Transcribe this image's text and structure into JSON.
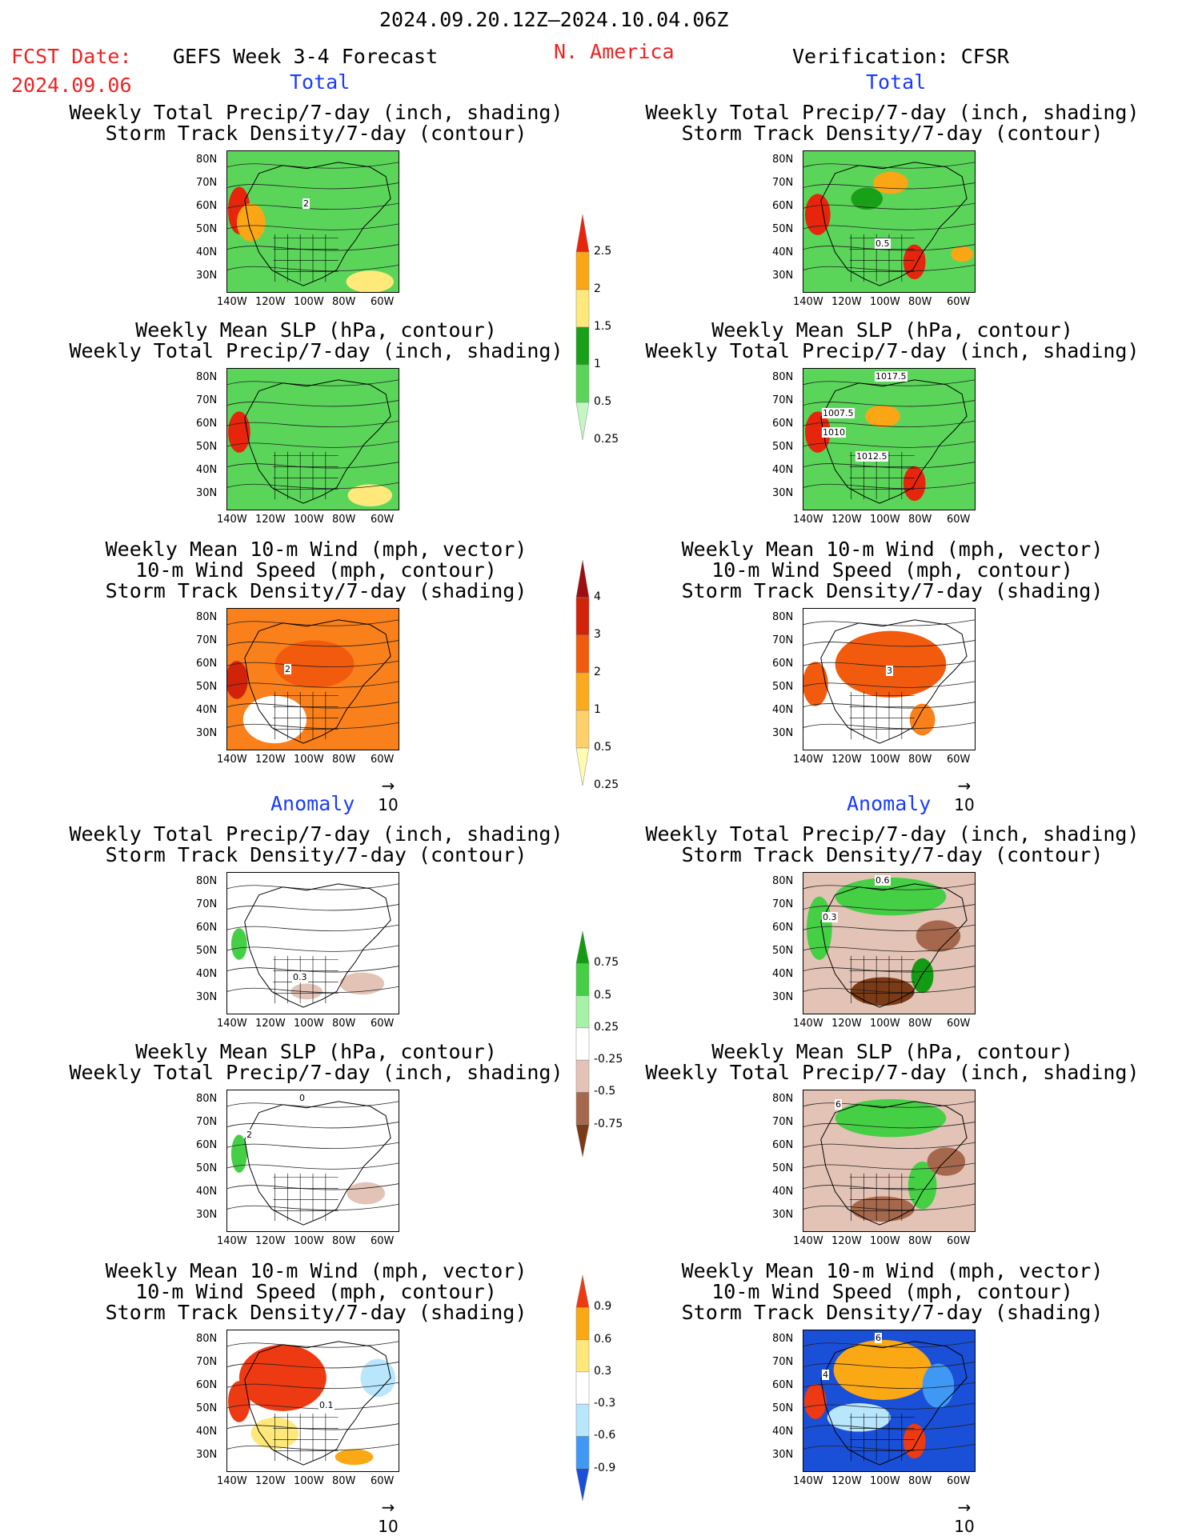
{
  "header": {
    "period": "2024.09.20.12Z–2024.10.04.06Z",
    "fcst_label": "FCST Date:",
    "fcst_date": "2024.09.06",
    "model": "GEFS Week 3-4 Forecast",
    "region": "N. America",
    "verification": "Verification: CFSR"
  },
  "sections": {
    "total": "Total",
    "anomaly": "Anomaly"
  },
  "titles": {
    "precip_storm": [
      "Weekly Total Precip/7-day (inch, shading)",
      "Storm Track Density/7-day (contour)"
    ],
    "slp_precip": [
      "Weekly Mean SLP (hPa, contour)",
      "Weekly Total Precip/7-day (inch, shading)"
    ],
    "wind_storm": [
      "Weekly Mean 10-m Wind (mph, vector)",
      "10-m Wind Speed (mph, contour)",
      "Storm Track Density/7-day (shading)"
    ]
  },
  "axes": {
    "lat_ticks": [
      "80N",
      "70N",
      "60N",
      "50N",
      "40N",
      "30N"
    ],
    "lon_ticks": [
      "140W",
      "120W",
      "100W",
      "80W",
      "60W"
    ]
  },
  "colors": {
    "precip": [
      "#c2f7c2",
      "#5ad55a",
      "#3caa3c",
      "#18a018",
      "#fee97a",
      "#fba615",
      "#f86c13",
      "#e7240c"
    ],
    "storm": [
      "#fffbb0",
      "#fdd06a",
      "#fbaa1e",
      "#f9801a",
      "#f25b0d",
      "#d0230a",
      "#9e0d12"
    ],
    "precip_anom": [
      "#7b3b16",
      "#a6684c",
      "#e3c3b6",
      "#ffffff",
      "#a8f2a8",
      "#45cf45",
      "#149b14"
    ],
    "storm_anom": [
      "#1a4fd8",
      "#4098f5",
      "#b8e6fc",
      "#ffffff",
      "#fee87a",
      "#fba815",
      "#ee3a12"
    ]
  },
  "colorbars": {
    "precip_total": [
      "2.5",
      "2",
      "1.5",
      "1",
      "0.5",
      "0.25"
    ],
    "storm_total": [
      "4",
      "3",
      "2",
      "1",
      "0.5",
      "0.25"
    ],
    "precip_anom": [
      "0.75",
      "0.5",
      "0.25",
      "-0.25",
      "-0.5",
      "-0.75"
    ],
    "storm_anom": [
      "0.9",
      "0.6",
      "0.3",
      "-0.3",
      "-0.6",
      "-0.9"
    ]
  },
  "vector_ref": "10",
  "contour_labels": {
    "fcst_total_precip": "2",
    "fcst_total_wind": "2",
    "obs_total_precip": "0.5",
    "obs_total_slp": [
      "1017.5",
      "1007.5",
      "1010",
      "1012.5"
    ],
    "obs_total_wind": "3",
    "fcst_anom_precip": "0.3",
    "obs_anom_precip": [
      "0.6",
      "0.3"
    ],
    "fcst_anom_slp": [
      "0",
      "2"
    ],
    "obs_anom_slp": "6",
    "fcst_anom_wind": "0.1",
    "obs_anom_wind": [
      "6",
      "4"
    ]
  }
}
